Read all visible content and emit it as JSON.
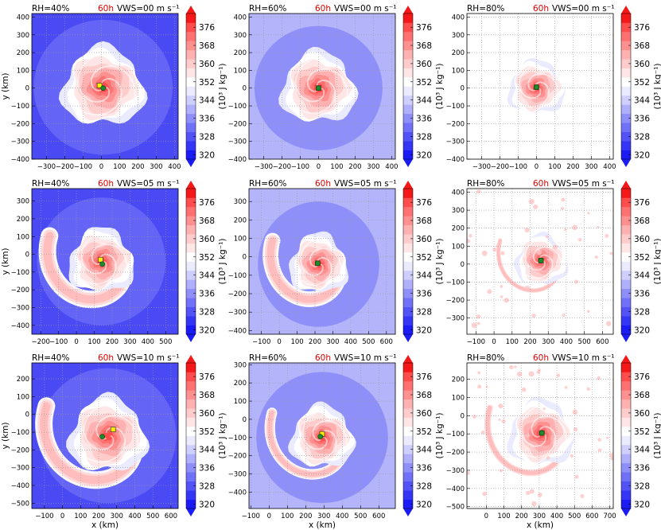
{
  "figure": {
    "xlabel": "x (km)",
    "ylabel": "y (km)",
    "colorbar_label": "(10³ J kg⁻¹)",
    "time_label": "60h",
    "time_color": "#e00000"
  },
  "colorbar": {
    "ticks": [
      320,
      328,
      336,
      344,
      352,
      360,
      368,
      376
    ],
    "range": [
      318,
      382
    ],
    "levels": [
      {
        "lo": 318,
        "hi": 322,
        "color": "#1b1bf5"
      },
      {
        "lo": 322,
        "hi": 326,
        "color": "#3535f6"
      },
      {
        "lo": 326,
        "hi": 330,
        "color": "#5252f7"
      },
      {
        "lo": 330,
        "hi": 334,
        "color": "#7070f8"
      },
      {
        "lo": 334,
        "hi": 338,
        "color": "#8f8ffa"
      },
      {
        "lo": 338,
        "hi": 342,
        "color": "#afaffb"
      },
      {
        "lo": 342,
        "hi": 346,
        "color": "#ceceff"
      },
      {
        "lo": 346,
        "hi": 350,
        "color": "#ebebff"
      },
      {
        "lo": 350,
        "hi": 354,
        "color": "#ffffff"
      },
      {
        "lo": 354,
        "hi": 358,
        "color": "#ffe6e6"
      },
      {
        "lo": 358,
        "hi": 362,
        "color": "#ffcccc"
      },
      {
        "lo": 362,
        "hi": 366,
        "color": "#ffb0b0"
      },
      {
        "lo": 366,
        "hi": 370,
        "color": "#ff9090"
      },
      {
        "lo": 370,
        "hi": 374,
        "color": "#ff7070"
      },
      {
        "lo": 374,
        "hi": 378,
        "color": "#ff4c4c"
      },
      {
        "lo": 378,
        "hi": 382,
        "color": "#f51818"
      }
    ],
    "extend": "both"
  },
  "chart_data": [
    {
      "type": "heatmap",
      "rh_label": "RH=40%",
      "vws_label": "VWS=00 m s⁻¹",
      "xlim": [
        -380,
        420
      ],
      "ylim": [
        -400,
        420
      ],
      "xticks": [
        -300,
        -200,
        -100,
        0,
        100,
        200,
        300,
        400
      ],
      "yticks": [
        -400,
        -300,
        -200,
        -100,
        0,
        100,
        200,
        300,
        400
      ],
      "show_xlabel": false,
      "show_ylabel": true,
      "background": "#4a4af4",
      "outer_ring_color": "#6464f6",
      "outer_ring_radius": 380,
      "center": [
        10,
        5
      ],
      "storm_radius": 220,
      "band": false,
      "markers": {
        "yellow": [
          -10,
          15
        ],
        "green": [
          10,
          0
        ]
      }
    },
    {
      "type": "heatmap",
      "rh_label": "RH=60%",
      "vws_label": "VWS=00 m s⁻¹",
      "xlim": [
        -380,
        420
      ],
      "ylim": [
        -400,
        420
      ],
      "xticks": [
        -300,
        -200,
        -100,
        0,
        100,
        200,
        300,
        400
      ],
      "yticks": [
        -400,
        -300,
        -200,
        -100,
        0,
        100,
        200,
        300,
        400
      ],
      "show_xlabel": false,
      "show_ylabel": false,
      "background": "#b4b4fb",
      "outer_ring_color": "#8f8ffa",
      "outer_ring_radius": 350,
      "center": [
        0,
        0
      ],
      "storm_radius": 200,
      "band": false,
      "markers": {
        "yellow": [
          0,
          0
        ],
        "green": [
          0,
          0
        ]
      }
    },
    {
      "type": "heatmap",
      "rh_label": "RH=80%",
      "vws_label": "VWS=00 m s⁻¹",
      "xlim": [
        -380,
        420
      ],
      "ylim": [
        -400,
        420
      ],
      "xticks": [
        -300,
        -200,
        -100,
        0,
        100,
        200,
        300,
        400
      ],
      "yticks": [
        -400,
        -300,
        -200,
        -100,
        0,
        100,
        200,
        300,
        400
      ],
      "show_xlabel": false,
      "show_ylabel": false,
      "background": "#ffffff",
      "outer_ring_color": null,
      "outer_ring_radius": 0,
      "center": [
        0,
        0
      ],
      "storm_radius": 150,
      "band": false,
      "markers": {
        "yellow": [
          0,
          5
        ],
        "green": [
          0,
          5
        ]
      }
    },
    {
      "type": "heatmap",
      "rh_label": "RH=40%",
      "vws_label": "VWS=05 m s⁻¹",
      "xlim": [
        -250,
        570
      ],
      "ylim": [
        -450,
        370
      ],
      "xticks": [
        -200,
        -100,
        0,
        100,
        200,
        300,
        400,
        500
      ],
      "yticks": [
        -400,
        -300,
        -200,
        -100,
        0,
        100,
        200,
        300
      ],
      "show_xlabel": false,
      "show_ylabel": true,
      "background": "#4a4af4",
      "outer_ring_color": "#6464f6",
      "outer_ring_radius": 360,
      "center": [
        140,
        -40
      ],
      "storm_radius": 180,
      "band": true,
      "band_strength": 1.0,
      "markers": {
        "yellow": [
          135,
          -30
        ],
        "green": [
          145,
          -55
        ]
      }
    },
    {
      "type": "heatmap",
      "rh_label": "RH=60%",
      "vws_label": "VWS=05 m s⁻¹",
      "xlim": [
        -170,
        650
      ],
      "ylim": [
        -420,
        370
      ],
      "xticks": [
        -100,
        0,
        100,
        200,
        300,
        400,
        500,
        600
      ],
      "yticks": [
        -400,
        -300,
        -200,
        -100,
        0,
        100,
        200,
        300
      ],
      "show_xlabel": false,
      "show_ylabel": false,
      "background": "#b4b4fb",
      "outer_ring_color": "#8f8ffa",
      "outer_ring_radius": 340,
      "center": [
        220,
        -40
      ],
      "storm_radius": 160,
      "band": true,
      "band_strength": 0.9,
      "markers": {
        "yellow": [
          215,
          -35
        ],
        "green": [
          215,
          -35
        ]
      }
    },
    {
      "type": "heatmap",
      "rh_label": "RH=80%",
      "vws_label": "VWS=05 m s⁻¹",
      "xlim": [
        -150,
        660
      ],
      "ylim": [
        -390,
        420
      ],
      "xticks": [
        -100,
        0,
        100,
        200,
        300,
        400,
        500,
        600
      ],
      "yticks": [
        -300,
        -200,
        -100,
        0,
        100,
        200,
        300,
        400
      ],
      "show_xlabel": false,
      "show_ylabel": false,
      "background": "#ffffff",
      "outer_ring_color": null,
      "outer_ring_radius": 0,
      "center": [
        260,
        20
      ],
      "storm_radius": 140,
      "band": true,
      "band_strength": 0.35,
      "markers": {
        "yellow": [
          260,
          20
        ],
        "green": [
          260,
          20
        ]
      }
    },
    {
      "type": "heatmap",
      "rh_label": "RH=40%",
      "vws_label": "VWS=10 m s⁻¹",
      "xlim": [
        -170,
        640
      ],
      "ylim": [
        -530,
        290
      ],
      "xticks": [
        -100,
        0,
        100,
        200,
        300,
        400,
        500,
        600
      ],
      "yticks": [
        -500,
        -400,
        -300,
        -200,
        -100,
        0,
        100,
        200
      ],
      "show_xlabel": true,
      "show_ylabel": true,
      "background": "#4a4af4",
      "outer_ring_color": "#6464f6",
      "outer_ring_radius": 380,
      "center": [
        250,
        -120
      ],
      "storm_radius": 210,
      "band": true,
      "band_strength": 1.0,
      "markers": {
        "yellow": [
          280,
          -85
        ],
        "green": [
          220,
          -125
        ]
      }
    },
    {
      "type": "heatmap",
      "rh_label": "RH=60%",
      "vws_label": "VWS=10 m s⁻¹",
      "xlim": [
        -110,
        690
      ],
      "ylim": [
        -490,
        310
      ],
      "xticks": [
        -100,
        0,
        100,
        200,
        300,
        400,
        500,
        600
      ],
      "yticks": [
        -400,
        -300,
        -200,
        -100,
        0,
        100,
        200,
        300
      ],
      "show_xlabel": true,
      "show_ylabel": false,
      "background": "#b4b4fb",
      "outer_ring_color": "#8f8ffa",
      "outer_ring_radius": 360,
      "center": [
        290,
        -100
      ],
      "storm_radius": 170,
      "band": true,
      "band_strength": 0.6,
      "markers": {
        "yellow": [
          290,
          -80
        ],
        "green": [
          280,
          -95
        ]
      }
    },
    {
      "type": "heatmap",
      "rh_label": "RH=80%",
      "vws_label": "VWS=10 m s⁻¹",
      "xlim": [
        -110,
        720
      ],
      "ylim": [
        -510,
        290
      ],
      "xticks": [
        0,
        100,
        200,
        300,
        400,
        500,
        600,
        700
      ],
      "yticks": [
        -500,
        -400,
        -300,
        -200,
        -100,
        0,
        100,
        200
      ],
      "show_xlabel": true,
      "show_ylabel": false,
      "background": "#ffffff",
      "outer_ring_color": null,
      "outer_ring_radius": 0,
      "center": [
        310,
        -100
      ],
      "storm_radius": 180,
      "band": true,
      "band_strength": 0.5,
      "markers": {
        "yellow": [
          315,
          -95
        ],
        "green": [
          315,
          -95
        ]
      }
    }
  ]
}
